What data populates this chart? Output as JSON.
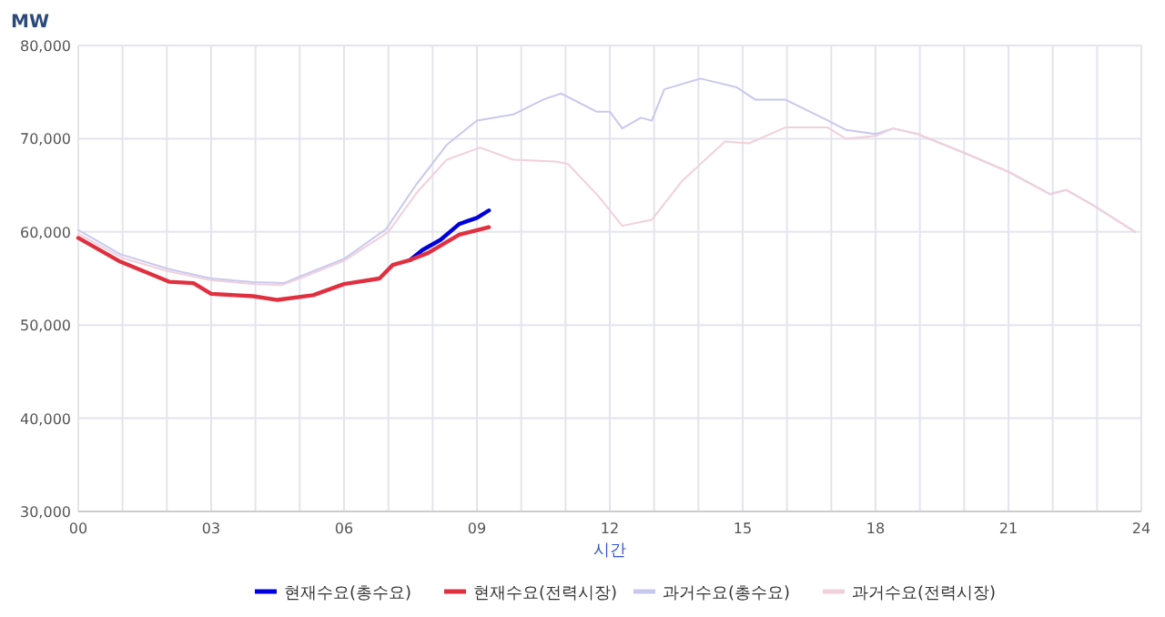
{
  "chart_data": {
    "type": "line",
    "ylabel": "MW",
    "xlabel": "시간",
    "xlim": [
      0,
      24
    ],
    "ylim": [
      30000,
      80000
    ],
    "xticks": [
      {
        "value": 0,
        "label": "00"
      },
      {
        "value": 1,
        "label": null
      },
      {
        "value": 2,
        "label": null
      },
      {
        "value": 3,
        "label": "03"
      },
      {
        "value": 4,
        "label": null
      },
      {
        "value": 5,
        "label": null
      },
      {
        "value": 6,
        "label": "06"
      },
      {
        "value": 7,
        "label": null
      },
      {
        "value": 8,
        "label": null
      },
      {
        "value": 9,
        "label": "09"
      },
      {
        "value": 10,
        "label": null
      },
      {
        "value": 11,
        "label": null
      },
      {
        "value": 12,
        "label": "12"
      },
      {
        "value": 13,
        "label": null
      },
      {
        "value": 14,
        "label": null
      },
      {
        "value": 15,
        "label": "15"
      },
      {
        "value": 16,
        "label": null
      },
      {
        "value": 17,
        "label": null
      },
      {
        "value": 18,
        "label": "18"
      },
      {
        "value": 19,
        "label": null
      },
      {
        "value": 20,
        "label": null
      },
      {
        "value": 21,
        "label": "21"
      },
      {
        "value": 22,
        "label": null
      },
      {
        "value": 23,
        "label": null
      },
      {
        "value": 24,
        "label": "24"
      }
    ],
    "yticks": [
      {
        "value": 30000,
        "label": "30,000"
      },
      {
        "value": 40000,
        "label": "40,000"
      },
      {
        "value": 50000,
        "label": "50,000"
      },
      {
        "value": 60000,
        "label": "60,000"
      },
      {
        "value": 70000,
        "label": "70,000"
      },
      {
        "value": 80000,
        "label": "80,000"
      }
    ],
    "grid": true,
    "legend": "bottom",
    "marker": "none",
    "line_style": "solid",
    "series": [
      {
        "name": "과거수요(총수요)",
        "color": "#c8c8ee",
        "x": [
          0,
          0.95,
          2.05,
          3,
          3.95,
          4.64,
          5.05,
          6,
          6.95,
          7.64,
          8.32,
          9,
          9.82,
          10.5,
          10.9,
          11.7,
          12,
          12.28,
          12.7,
          12.95,
          13.23,
          14.05,
          14.87,
          15.28,
          15.96,
          16.92,
          17.33,
          18,
          18.4,
          18.95,
          20.04,
          21,
          21.94,
          22.3,
          22.9,
          23.86
        ],
        "values": [
          60200,
          57600,
          56000,
          55000,
          54600,
          54500,
          55300,
          57100,
          60300,
          65150,
          69350,
          71950,
          72600,
          74200,
          74850,
          72900,
          72900,
          71100,
          72250,
          71950,
          75300,
          76450,
          75500,
          74200,
          74200,
          71950,
          70950,
          70500,
          71100,
          70500,
          68400,
          66450,
          64050,
          64500,
          62900,
          60000
        ]
      },
      {
        "name": "과거수요(전력시장)",
        "color": "#f0d0dc",
        "x": [
          0,
          1,
          2,
          3,
          4,
          4.6,
          5,
          6,
          7,
          7.64,
          8.32,
          9.07,
          9.82,
          10.77,
          11.05,
          11.73,
          12.28,
          12.95,
          13.64,
          14.6,
          15.14,
          15.96,
          16.92,
          17.33,
          18,
          18.4,
          18.95,
          20.04,
          21,
          21.94,
          22.3,
          22.9,
          23.86
        ],
        "values": [
          59800,
          57200,
          55800,
          54800,
          54400,
          54300,
          55000,
          56900,
          60000,
          64200,
          67750,
          69050,
          67750,
          67550,
          67300,
          63900,
          60650,
          61300,
          65500,
          69700,
          69500,
          71200,
          71200,
          70000,
          70300,
          71100,
          70500,
          68400,
          66450,
          64050,
          64500,
          62900,
          60000
        ]
      },
      {
        "name": "현재수요(총수요)",
        "color": "#0000dd",
        "x": [
          7.5,
          7.77,
          8.18,
          8.6,
          9,
          9.27
        ],
        "values": [
          57000,
          58050,
          59150,
          60850,
          61500,
          62300
        ]
      },
      {
        "name": "현재수요(전력시장)",
        "color": "#e03040",
        "x": [
          0,
          0.95,
          2.05,
          2.6,
          3,
          3.95,
          4.5,
          5.3,
          6,
          6.8,
          7.1,
          7.5,
          7.9,
          8.6,
          9.27
        ],
        "values": [
          59350,
          56800,
          54650,
          54500,
          53350,
          53100,
          52700,
          53200,
          54400,
          55000,
          56450,
          57000,
          57750,
          59700,
          60500
        ]
      }
    ]
  }
}
